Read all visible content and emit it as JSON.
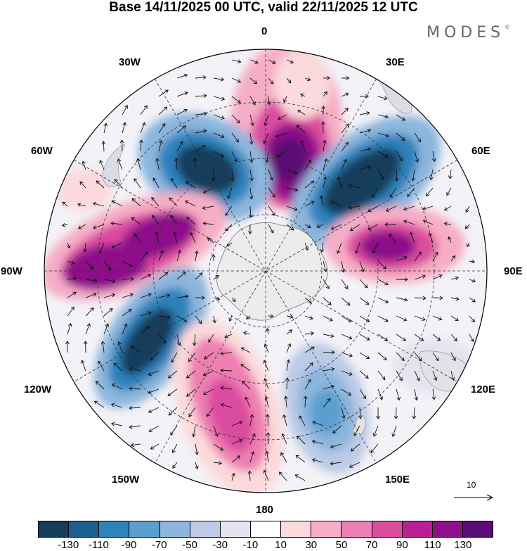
{
  "title": "Base 14/11/2025 00 UTC, valid 22/11/2025 12 UTC",
  "logo": "MODES",
  "logo_mark": "©",
  "longitude_labels": {
    "n0": "0",
    "e30": "30E",
    "e60": "60E",
    "e90": "90E",
    "e120": "120E",
    "e150": "150E",
    "s180": "180",
    "w150": "150W",
    "w120": "120W",
    "w90": "90W",
    "w60": "60W",
    "w30": "30W"
  },
  "reference_vector_label": "10",
  "colorbar": {
    "colors": [
      "#133d5c",
      "#1a5f8f",
      "#2f82bb",
      "#5a9fcf",
      "#8cb6dd",
      "#bccbe6",
      "#e4e4f0",
      "#ffffff",
      "#fbd9dc",
      "#f6aec6",
      "#ee7fb2",
      "#db4c9f",
      "#b82193",
      "#8d0f8a",
      "#5b0b74"
    ],
    "ticks": [
      "-130",
      "-110",
      "-90",
      "-70",
      "-50",
      "-30",
      "-10",
      "10",
      "30",
      "50",
      "70",
      "90",
      "110",
      "130"
    ]
  }
}
